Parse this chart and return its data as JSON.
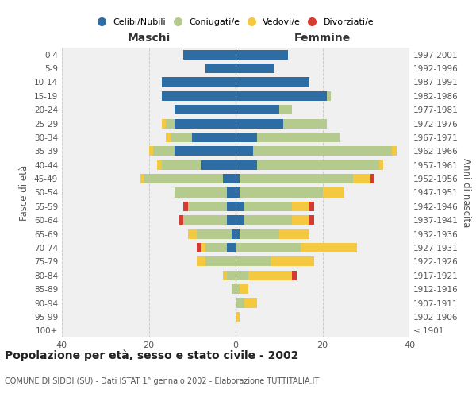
{
  "age_groups": [
    "100+",
    "95-99",
    "90-94",
    "85-89",
    "80-84",
    "75-79",
    "70-74",
    "65-69",
    "60-64",
    "55-59",
    "50-54",
    "45-49",
    "40-44",
    "35-39",
    "30-34",
    "25-29",
    "20-24",
    "15-19",
    "10-14",
    "5-9",
    "0-4"
  ],
  "birth_years": [
    "≤ 1901",
    "1902-1906",
    "1907-1911",
    "1912-1916",
    "1917-1921",
    "1922-1926",
    "1927-1931",
    "1932-1936",
    "1937-1941",
    "1942-1946",
    "1947-1951",
    "1952-1956",
    "1957-1961",
    "1962-1966",
    "1967-1971",
    "1972-1976",
    "1977-1981",
    "1982-1986",
    "1987-1991",
    "1992-1996",
    "1997-2001"
  ],
  "male": {
    "celibi": [
      0,
      0,
      0,
      0,
      0,
      0,
      2,
      1,
      2,
      2,
      2,
      3,
      8,
      14,
      10,
      14,
      14,
      17,
      17,
      7,
      12
    ],
    "coniugati": [
      0,
      0,
      0,
      1,
      2,
      7,
      5,
      8,
      10,
      9,
      12,
      18,
      9,
      5,
      5,
      2,
      0,
      0,
      0,
      0,
      0
    ],
    "vedovi": [
      0,
      0,
      0,
      0,
      1,
      2,
      1,
      2,
      0,
      0,
      0,
      1,
      1,
      1,
      1,
      1,
      0,
      0,
      0,
      0,
      0
    ],
    "divorziati": [
      0,
      0,
      0,
      0,
      0,
      0,
      1,
      0,
      1,
      1,
      0,
      0,
      0,
      0,
      0,
      0,
      0,
      0,
      0,
      0,
      0
    ]
  },
  "female": {
    "nubili": [
      0,
      0,
      0,
      0,
      0,
      0,
      0,
      1,
      2,
      2,
      1,
      1,
      5,
      4,
      5,
      11,
      10,
      21,
      17,
      9,
      12
    ],
    "coniugate": [
      0,
      0,
      2,
      1,
      3,
      8,
      15,
      9,
      11,
      11,
      19,
      26,
      28,
      32,
      19,
      10,
      3,
      1,
      0,
      0,
      0
    ],
    "vedove": [
      0,
      1,
      3,
      2,
      10,
      10,
      13,
      7,
      4,
      4,
      5,
      4,
      1,
      1,
      0,
      0,
      0,
      0,
      0,
      0,
      0
    ],
    "divorziate": [
      0,
      0,
      0,
      0,
      1,
      0,
      0,
      0,
      1,
      1,
      0,
      1,
      0,
      0,
      0,
      0,
      0,
      0,
      0,
      0,
      0
    ]
  },
  "colors": {
    "celibi": "#2e6da4",
    "coniugati": "#b5ca8d",
    "vedovi": "#f5c842",
    "divorziati": "#d63b2f"
  },
  "title": "Popolazione per età, sesso e stato civile - 2002",
  "subtitle": "COMUNE DI SIDDI (SU) - Dati ISTAT 1° gennaio 2002 - Elaborazione TUTTITALIA.IT",
  "xlabel_left": "Maschi",
  "xlabel_right": "Femmine",
  "ylabel_left": "Fasce di età",
  "ylabel_right": "Anni di nascita",
  "xlim": 40,
  "background_color": "#ffffff",
  "grid_color": "#cccccc",
  "legend_labels": [
    "Celibi/Nubili",
    "Coniugati/e",
    "Vedovi/e",
    "Divorziati/e"
  ]
}
